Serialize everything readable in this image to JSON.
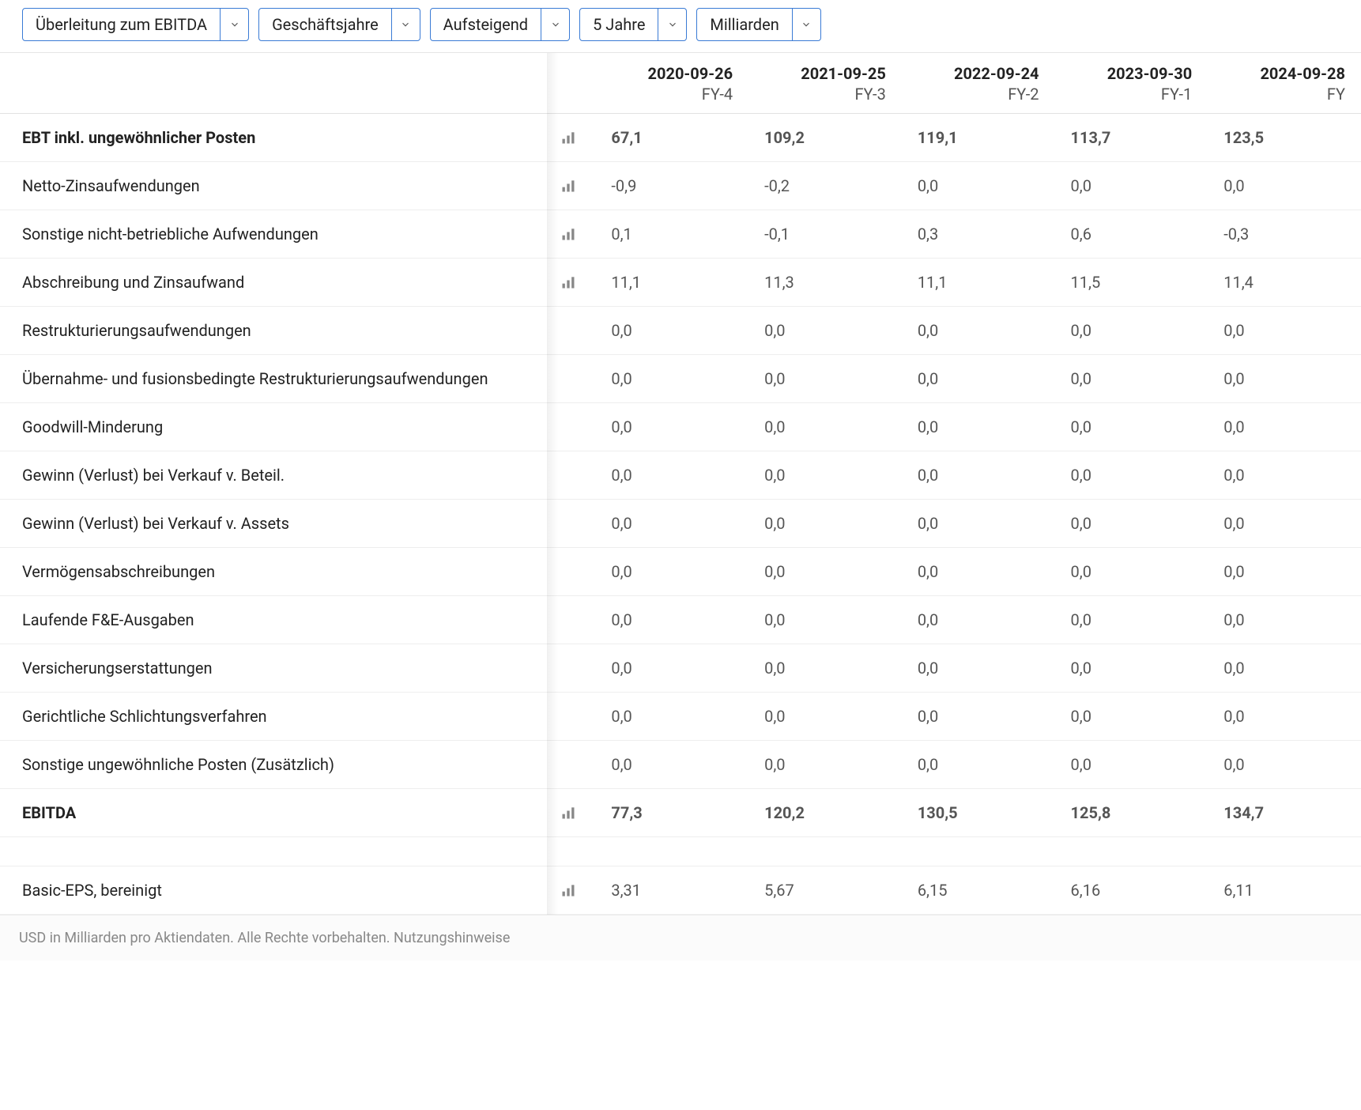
{
  "dropdowns": [
    {
      "label": "Überleitung zum EBITDA"
    },
    {
      "label": "Geschäftsjahre"
    },
    {
      "label": "Aufsteigend"
    },
    {
      "label": "5 Jahre"
    },
    {
      "label": "Milliarden"
    }
  ],
  "periods": [
    {
      "date": "2020-09-26",
      "fy": "FY-4"
    },
    {
      "date": "2021-09-25",
      "fy": "FY-3"
    },
    {
      "date": "2022-09-24",
      "fy": "FY-2"
    },
    {
      "date": "2023-09-30",
      "fy": "FY-1"
    },
    {
      "date": "2024-09-28",
      "fy": "FY"
    }
  ],
  "rows": [
    {
      "label": "EBT inkl. ungewöhnlicher Posten",
      "bold": true,
      "chart": true,
      "values": [
        "67,1",
        "109,2",
        "119,1",
        "113,7",
        "123,5"
      ]
    },
    {
      "label": "Netto-Zinsaufwendungen",
      "bold": false,
      "chart": true,
      "values": [
        "-0,9",
        "-0,2",
        "0,0",
        "0,0",
        "0,0"
      ]
    },
    {
      "label": "Sonstige nicht-betriebliche Aufwendungen",
      "bold": false,
      "chart": true,
      "values": [
        "0,1",
        "-0,1",
        "0,3",
        "0,6",
        "-0,3"
      ]
    },
    {
      "label": "Abschreibung und Zinsaufwand",
      "bold": false,
      "chart": true,
      "values": [
        "11,1",
        "11,3",
        "11,1",
        "11,5",
        "11,4"
      ]
    },
    {
      "label": "Restrukturierungsaufwendungen",
      "bold": false,
      "chart": false,
      "values": [
        "0,0",
        "0,0",
        "0,0",
        "0,0",
        "0,0"
      ]
    },
    {
      "label": "Übernahme- und fusionsbedingte Restrukturierungsaufwendungen",
      "bold": false,
      "chart": false,
      "values": [
        "0,0",
        "0,0",
        "0,0",
        "0,0",
        "0,0"
      ]
    },
    {
      "label": "Goodwill-Minderung",
      "bold": false,
      "chart": false,
      "values": [
        "0,0",
        "0,0",
        "0,0",
        "0,0",
        "0,0"
      ]
    },
    {
      "label": "Gewinn (Verlust) bei Verkauf v. Beteil.",
      "bold": false,
      "chart": false,
      "values": [
        "0,0",
        "0,0",
        "0,0",
        "0,0",
        "0,0"
      ]
    },
    {
      "label": "Gewinn (Verlust) bei Verkauf v. Assets",
      "bold": false,
      "chart": false,
      "values": [
        "0,0",
        "0,0",
        "0,0",
        "0,0",
        "0,0"
      ]
    },
    {
      "label": "Vermögensabschreibungen",
      "bold": false,
      "chart": false,
      "values": [
        "0,0",
        "0,0",
        "0,0",
        "0,0",
        "0,0"
      ]
    },
    {
      "label": "Laufende F&E-Ausgaben",
      "bold": false,
      "chart": false,
      "values": [
        "0,0",
        "0,0",
        "0,0",
        "0,0",
        "0,0"
      ]
    },
    {
      "label": "Versicherungserstattungen",
      "bold": false,
      "chart": false,
      "values": [
        "0,0",
        "0,0",
        "0,0",
        "0,0",
        "0,0"
      ]
    },
    {
      "label": "Gerichtliche Schlichtungsverfahren",
      "bold": false,
      "chart": false,
      "values": [
        "0,0",
        "0,0",
        "0,0",
        "0,0",
        "0,0"
      ]
    },
    {
      "label": "Sonstige ungewöhnliche Posten (Zusätzlich)",
      "bold": false,
      "chart": false,
      "values": [
        "0,0",
        "0,0",
        "0,0",
        "0,0",
        "0,0"
      ]
    },
    {
      "label": "EBITDA",
      "bold": true,
      "chart": true,
      "values": [
        "77,3",
        "120,2",
        "130,5",
        "125,8",
        "134,7"
      ]
    }
  ],
  "rows2": [
    {
      "label": "Basic-EPS, bereinigt",
      "bold": false,
      "chart": true,
      "values": [
        "3,31",
        "5,67",
        "6,15",
        "6,16",
        "6,11"
      ]
    }
  ],
  "footer": {
    "text": "USD in Milliarden pro Aktiendaten. Alle Rechte vorbehalten. ",
    "link": "Nutzungshinweise"
  },
  "colors": {
    "dropdown_border": "#3a7bd5",
    "row_border": "#eeeeee",
    "muted_text": "#555555",
    "icon": "#888888"
  }
}
